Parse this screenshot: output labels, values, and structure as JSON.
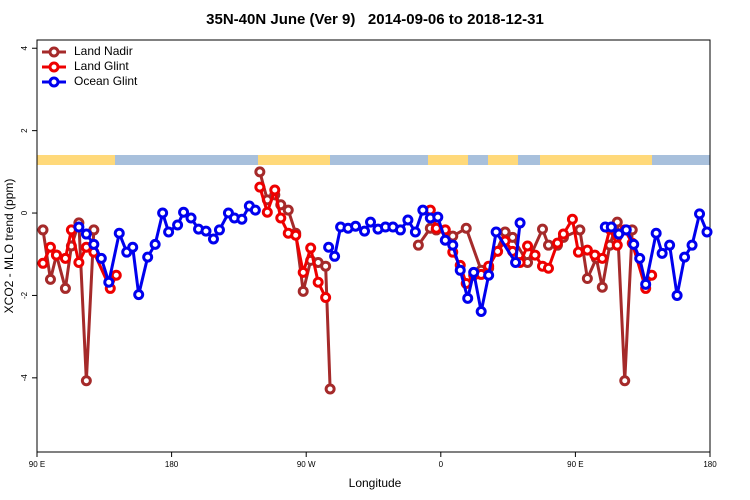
{
  "chart_data": {
    "type": "line",
    "title": "35N-40N June (Ver 9)   2014-09-06 to 2018-12-31",
    "xlabel": "Longitude",
    "ylabel": "XCO2 - MLO trend (ppm)",
    "xlim": [
      90,
      540
    ],
    "ylim": [
      -5.8,
      4.2
    ],
    "xticks": [
      {
        "value": 90,
        "label": "90 E"
      },
      180,
      {
        "value": 270,
        "label": "90 W"
      },
      {
        "value": 360,
        "label": "0"
      },
      {
        "value": 450,
        "label": "90 E"
      },
      {
        "value": 540,
        "label": "180"
      }
    ],
    "yticks": [
      -4,
      -2,
      0,
      2,
      4
    ],
    "legend": "top-left",
    "series": [
      {
        "name": "Land Nadir",
        "color": "#a52a2a",
        "x": [
          94,
          99,
          103,
          109,
          113,
          118,
          123,
          128,
          null,
          239,
          244,
          249,
          253,
          258,
          263,
          268,
          273,
          278,
          283,
          286,
          null,
          345,
          353,
          357,
          368,
          377,
          387,
          392,
          403,
          408,
          418,
          428,
          432,
          438,
          442,
          453,
          458,
          464,
          468,
          473,
          478,
          483,
          488
        ],
        "values": [
          -0.41,
          -1.61,
          -1.02,
          -1.83,
          -0.8,
          -0.24,
          -4.07,
          -0.41,
          null,
          1.0,
          0.32,
          0.44,
          0.2,
          0.07,
          -0.49,
          -1.9,
          -1.15,
          -1.2,
          -1.29,
          -4.27,
          null,
          -0.78,
          -0.37,
          -0.41,
          -0.56,
          -0.37,
          -1.39,
          -1.34,
          -0.46,
          -0.59,
          -1.2,
          -0.39,
          -0.78,
          -0.78,
          -0.59,
          -0.41,
          -1.59,
          -1.1,
          -1.8,
          -0.78,
          -0.22,
          -4.07,
          -0.41
        ]
      },
      {
        "name": "Land Glint",
        "color": "#ee0000",
        "x": [
          94,
          99,
          103,
          109,
          113,
          118,
          123,
          128,
          139,
          143,
          null,
          239,
          244,
          249,
          253,
          258,
          263,
          268,
          273,
          278,
          283,
          null,
          353,
          357,
          363,
          368,
          373,
          377,
          382,
          387,
          392,
          398,
          403,
          408,
          413,
          418,
          423,
          428,
          432,
          438,
          442,
          448,
          452,
          458,
          463,
          468,
          473,
          478,
          483,
          488,
          497,
          501
        ],
        "values": [
          -1.22,
          -0.83,
          -1.02,
          -1.1,
          -0.41,
          -1.2,
          -0.83,
          -0.95,
          -1.83,
          -1.51,
          null,
          0.63,
          0.02,
          0.56,
          -0.12,
          -0.49,
          -0.54,
          -1.44,
          -0.85,
          -1.68,
          -2.05,
          null,
          0.07,
          -0.37,
          -0.41,
          -0.95,
          -1.27,
          -1.71,
          -1.51,
          -1.49,
          -1.29,
          -0.93,
          -0.68,
          -0.93,
          -1.2,
          -0.8,
          -1.02,
          -1.29,
          -1.34,
          -0.73,
          -0.51,
          -0.15,
          -0.95,
          -0.9,
          -1.02,
          -1.1,
          -0.39,
          -0.78,
          -0.41,
          -0.73,
          -1.83,
          -1.51
        ]
      },
      {
        "name": "Ocean Glint",
        "color": "#0000ee",
        "x": [
          118,
          123,
          128,
          133,
          138,
          145,
          150,
          154,
          158,
          164,
          169,
          174,
          178,
          184,
          188,
          193,
          198,
          203,
          208,
          212,
          218,
          222,
          227,
          232,
          236,
          null,
          285,
          289,
          293,
          298,
          303,
          309,
          313,
          318,
          323,
          328,
          333,
          338,
          343,
          348,
          353,
          358,
          363,
          368,
          373,
          378,
          382,
          387,
          392,
          397,
          410,
          413,
          null,
          470,
          474,
          479,
          484,
          489,
          493,
          497,
          504,
          508,
          513,
          518,
          523,
          528,
          533,
          538
        ],
        "values": [
          -0.34,
          -0.51,
          -0.76,
          -1.1,
          -1.68,
          -0.49,
          -0.95,
          -0.83,
          -1.98,
          -1.07,
          -0.76,
          0,
          -0.46,
          -0.29,
          0.02,
          -0.12,
          -0.39,
          -0.44,
          -0.63,
          -0.41,
          0,
          -0.12,
          -0.15,
          0.17,
          0.07,
          null,
          -0.83,
          -1.05,
          -0.34,
          -0.37,
          -0.32,
          -0.44,
          -0.22,
          -0.39,
          -0.34,
          -0.34,
          -0.41,
          -0.17,
          -0.46,
          0.07,
          -0.12,
          -0.1,
          -0.66,
          -0.78,
          -1.39,
          -2.07,
          -1.44,
          -2.39,
          -1.51,
          -0.46,
          -1.2,
          -0.24,
          null,
          -0.34,
          -0.34,
          -0.51,
          -0.41,
          -0.76,
          -1.1,
          -1.73,
          -0.49,
          -0.98,
          -0.78,
          -2.0,
          -1.07,
          -0.78,
          -0.02,
          -0.46
        ]
      }
    ]
  }
}
